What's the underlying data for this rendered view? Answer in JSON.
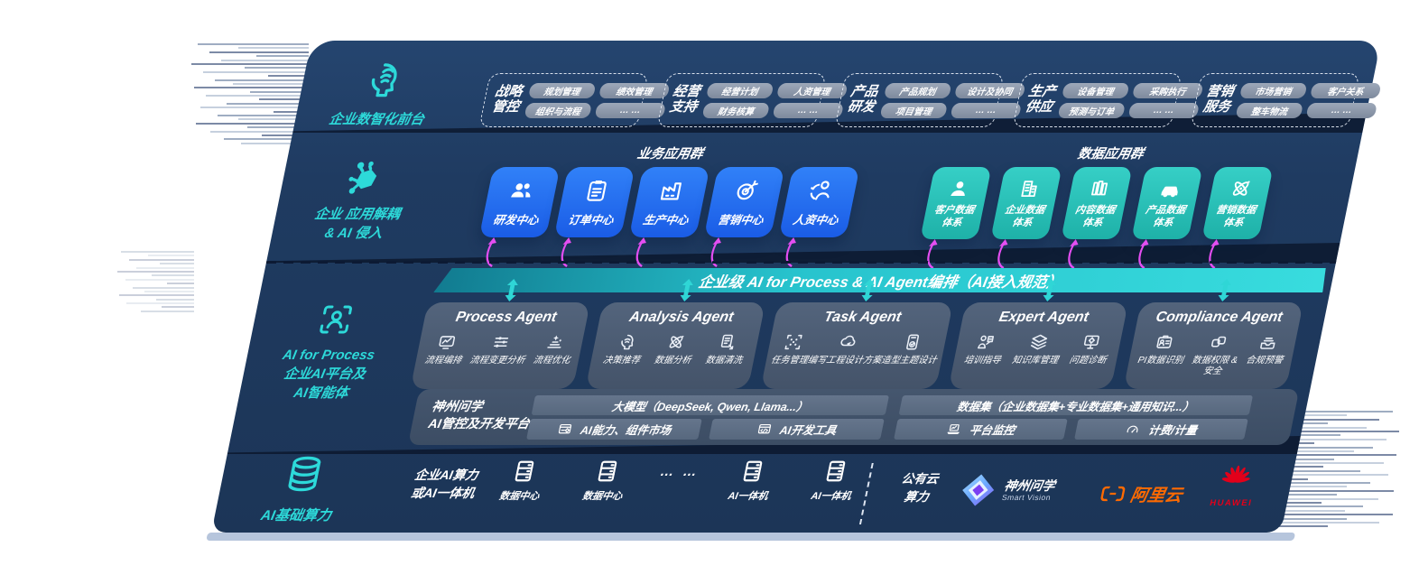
{
  "colors": {
    "panel_bg": "#1f3b61",
    "teal_accent": "#2dd9d9",
    "blue_box": "#1f66ee",
    "teal_box": "#2bc4bb",
    "magenta_arrow": "#e44ef2",
    "band_teal": "#27c3cd",
    "aliyun_orange": "#ff6a00",
    "huawei_red": "#e2001a"
  },
  "rail": {
    "front": {
      "icon": "brainhead",
      "label": "企业数智化前台"
    },
    "decouple": {
      "icon": "molecule",
      "label_l1": "企业 应用解耦",
      "label_l2": "& AI 侵入"
    },
    "ai": {
      "icon": "personscan",
      "label_l1": "AI for Process",
      "label_l2": "企业AI平台及",
      "label_l3": "AI智能体"
    },
    "compute": {
      "icon": "database",
      "label": "AI基础算力"
    }
  },
  "front_groups": [
    {
      "t1": "战略",
      "t2": "管控",
      "chips": [
        "规划管理",
        "绩效管理",
        "组织与流程",
        "… …"
      ]
    },
    {
      "t1": "经营",
      "t2": "支持",
      "chips": [
        "经营计划",
        "人资管理",
        "财务核算",
        "… …"
      ]
    },
    {
      "t1": "产品",
      "t2": "研发",
      "chips": [
        "产品规划",
        "设计及协同",
        "项目管理",
        "… …"
      ]
    },
    {
      "t1": "生产",
      "t2": "供应",
      "chips": [
        "设备管理",
        "采购执行",
        "预测与订单",
        "… …"
      ]
    },
    {
      "t1": "营销",
      "t2": "服务",
      "chips": [
        "市场营销",
        "客户关系",
        "整车物流",
        "… …"
      ]
    }
  ],
  "apps": {
    "business_heading": "业务应用群",
    "business": [
      {
        "icon": "people",
        "label": "研发中心"
      },
      {
        "icon": "clipboard",
        "label": "订单中心"
      },
      {
        "icon": "factory",
        "label": "生产中心"
      },
      {
        "icon": "target",
        "label": "营销中心"
      },
      {
        "icon": "hrpeople",
        "label": "人资中心"
      }
    ],
    "data_heading": "数据应用群",
    "data": [
      {
        "icon": "person",
        "l1": "客户数据",
        "l2": "体系"
      },
      {
        "icon": "building",
        "l1": "企业数据",
        "l2": "体系"
      },
      {
        "icon": "books",
        "l1": "内容数据",
        "l2": "体系"
      },
      {
        "icon": "car",
        "l1": "产品数据",
        "l2": "体系"
      },
      {
        "icon": "atom",
        "l1": "营销数据",
        "l2": "体系"
      }
    ]
  },
  "band": {
    "text": "企业级 AI for Process & AI Agent编排（AI接入规范）"
  },
  "agents": [
    {
      "title": "Process Agent",
      "items": [
        {
          "icon": "flow",
          "label": "流程编排"
        },
        {
          "icon": "sliders",
          "label": "流程变更分析"
        },
        {
          "icon": "optimize",
          "label": "流程优化"
        }
      ]
    },
    {
      "title": "Analysis Agent",
      "items": [
        {
          "icon": "headidea",
          "label": "决策推荐"
        },
        {
          "icon": "atom",
          "label": "数据分析"
        },
        {
          "icon": "doc",
          "label": "数据清洗"
        }
      ]
    },
    {
      "title": "Task Agent",
      "items": [
        {
          "icon": "taskgrid",
          "label": "任务管理"
        },
        {
          "icon": "cloudpen",
          "label": "编写工程设计方案"
        },
        {
          "icon": "designboard",
          "label": "造型主题设计"
        }
      ]
    },
    {
      "title": "Expert Agent",
      "items": [
        {
          "icon": "teach",
          "label": "培训指导"
        },
        {
          "icon": "layers",
          "label": "知识库管理"
        },
        {
          "icon": "diagnose",
          "label": "问题诊断"
        }
      ]
    },
    {
      "title": "Compliance Agent",
      "items": [
        {
          "icon": "idcard",
          "label": "PI数据识别"
        },
        {
          "icon": "shieldlink",
          "label": "数据权限 &\n安全"
        },
        {
          "icon": "inbox",
          "label": "合规预警"
        }
      ]
    }
  ],
  "platform": {
    "vendor_l1": "神州问学",
    "vendor_l2": "AI管控及开发平台",
    "model_bar": "大模型（DeepSeek, Qwen, Llama...）",
    "left_chips": [
      {
        "icon": "aimarket",
        "label": "AI能力、组件市场"
      },
      {
        "icon": "aitools",
        "label": "AI开发工具"
      }
    ],
    "data_bar": "数据集（企业数据集+专业数据集+通用知识...）",
    "right_chips": [
      {
        "icon": "monitor",
        "label": "平台监控"
      },
      {
        "icon": "gauge",
        "label": "计费/计量"
      }
    ]
  },
  "bottom": {
    "compute_l1": "企业AI算力",
    "compute_l2": "或AI一体机",
    "nodes_left": [
      {
        "icon": "server",
        "label": "数据中心"
      },
      {
        "icon": "server",
        "label": "数据中心"
      }
    ],
    "ellipsis": "… …",
    "nodes_right": [
      {
        "icon": "server",
        "label": "AI一体机"
      },
      {
        "icon": "server",
        "label": "AI一体机"
      }
    ],
    "cloud_l1": "公有云",
    "cloud_l2": "算力",
    "partners": {
      "szwx_icon": "szwx",
      "szwx_name": "神州问学",
      "szwx_sub": "Smart  Vision",
      "aliyun_icon": "aliyun",
      "aliyun_name": "阿里云",
      "huawei_icon": "huawei",
      "huawei_name": "HUAWEI"
    }
  }
}
